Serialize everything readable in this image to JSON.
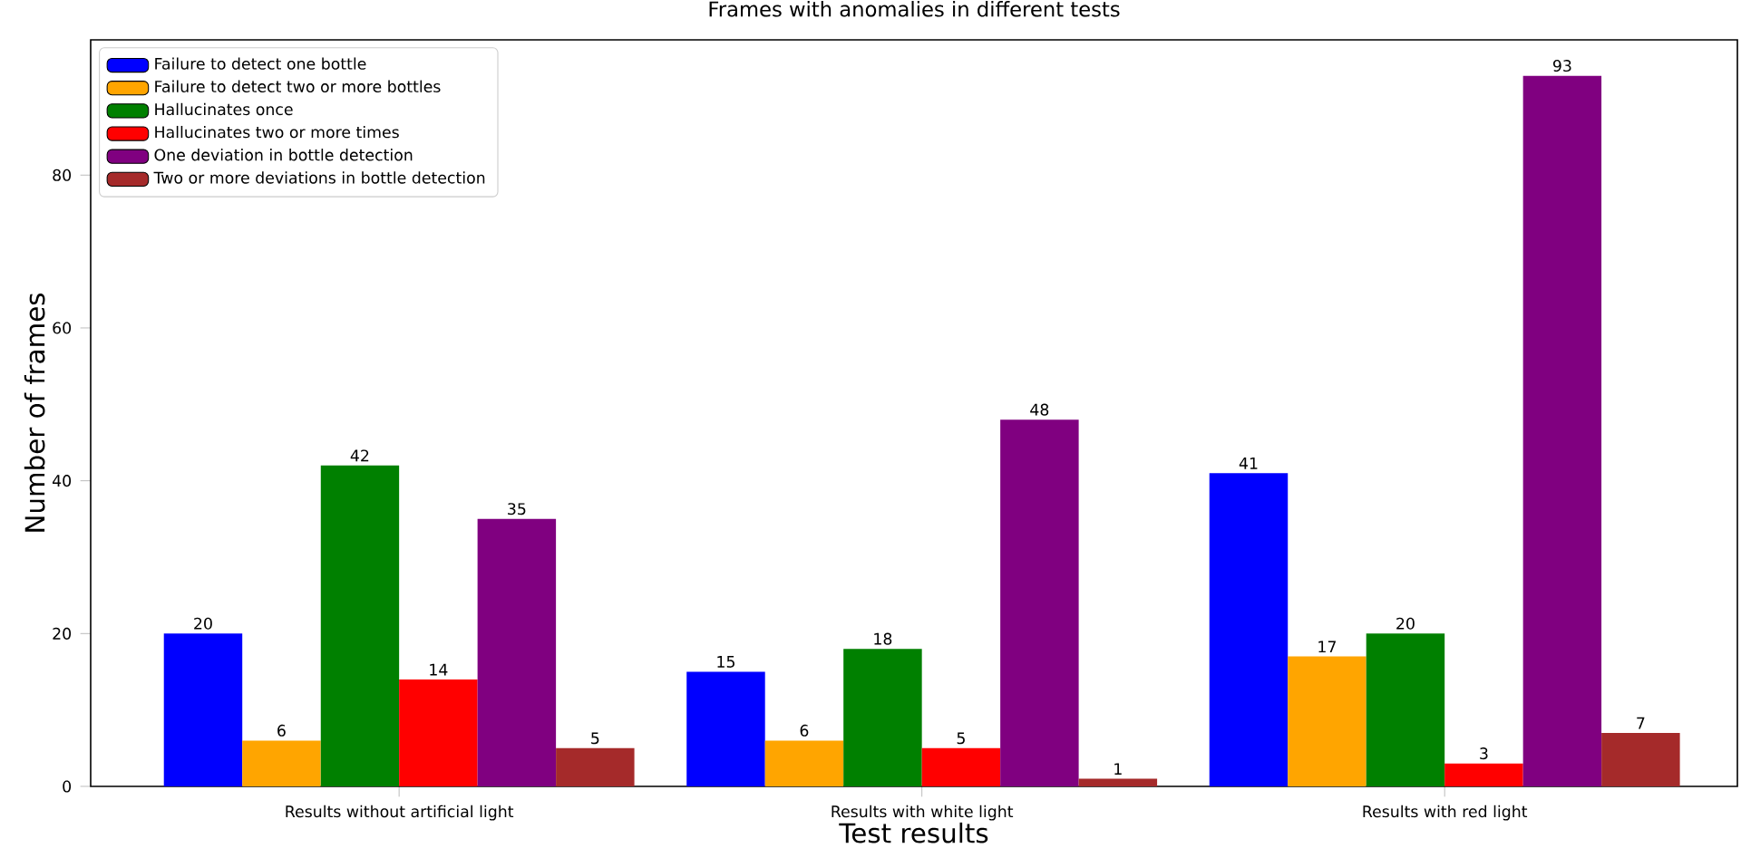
{
  "chart_data": {
    "type": "bar",
    "title": "Frames with anomalies in different tests",
    "xlabel": "Test results",
    "ylabel": "Number of frames",
    "categories": [
      "Results without artificial light",
      "Results with white light",
      "Results with red light"
    ],
    "series": [
      {
        "name": "Failure to detect one bottle",
        "color": "#0000ff",
        "values": [
          20,
          15,
          41
        ]
      },
      {
        "name": "Failure to detect two or more bottles",
        "color": "#ffa500",
        "values": [
          6,
          6,
          17
        ]
      },
      {
        "name": "Hallucinates once",
        "color": "#008000",
        "values": [
          42,
          18,
          20
        ]
      },
      {
        "name": "Hallucinates two or more times",
        "color": "#ff0000",
        "values": [
          14,
          5,
          3
        ]
      },
      {
        "name": "One deviation in bottle detection",
        "color": "#800080",
        "values": [
          35,
          48,
          93
        ]
      },
      {
        "name": "Two or more deviations in bottle detection",
        "color": "#a52a2a",
        "values": [
          5,
          1,
          7
        ]
      }
    ],
    "ylim": [
      0,
      97.7
    ],
    "yticks": [
      0,
      20,
      40,
      60,
      80
    ],
    "data_labels": true,
    "legend": "top left",
    "grid": false
  }
}
